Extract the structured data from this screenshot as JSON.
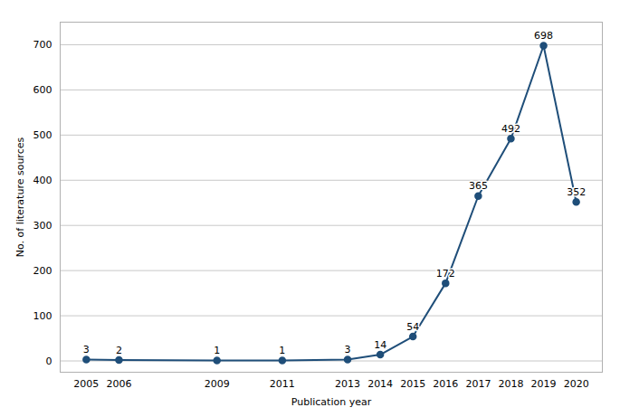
{
  "chart_data": {
    "type": "line",
    "x": [
      2005,
      2006,
      2009,
      2011,
      2013,
      2014,
      2015,
      2016,
      2017,
      2018,
      2019,
      2020
    ],
    "values": [
      3,
      2,
      1,
      1,
      3,
      14,
      54,
      172,
      365,
      492,
      698,
      352
    ],
    "color": "#1f4e79",
    "marker": "circle",
    "xlabel": "Publication year",
    "ylabel": "No. of literature sources",
    "xlim": [
      2004.2,
      2020.8
    ],
    "xticks": [
      2005,
      2006,
      2009,
      2011,
      2013,
      2014,
      2015,
      2016,
      2017,
      2018,
      2019,
      2020
    ],
    "ylim": [
      -25,
      750
    ],
    "yticks": [
      0,
      100,
      200,
      300,
      400,
      500,
      600,
      700
    ],
    "grid": true,
    "data_labels": true
  }
}
